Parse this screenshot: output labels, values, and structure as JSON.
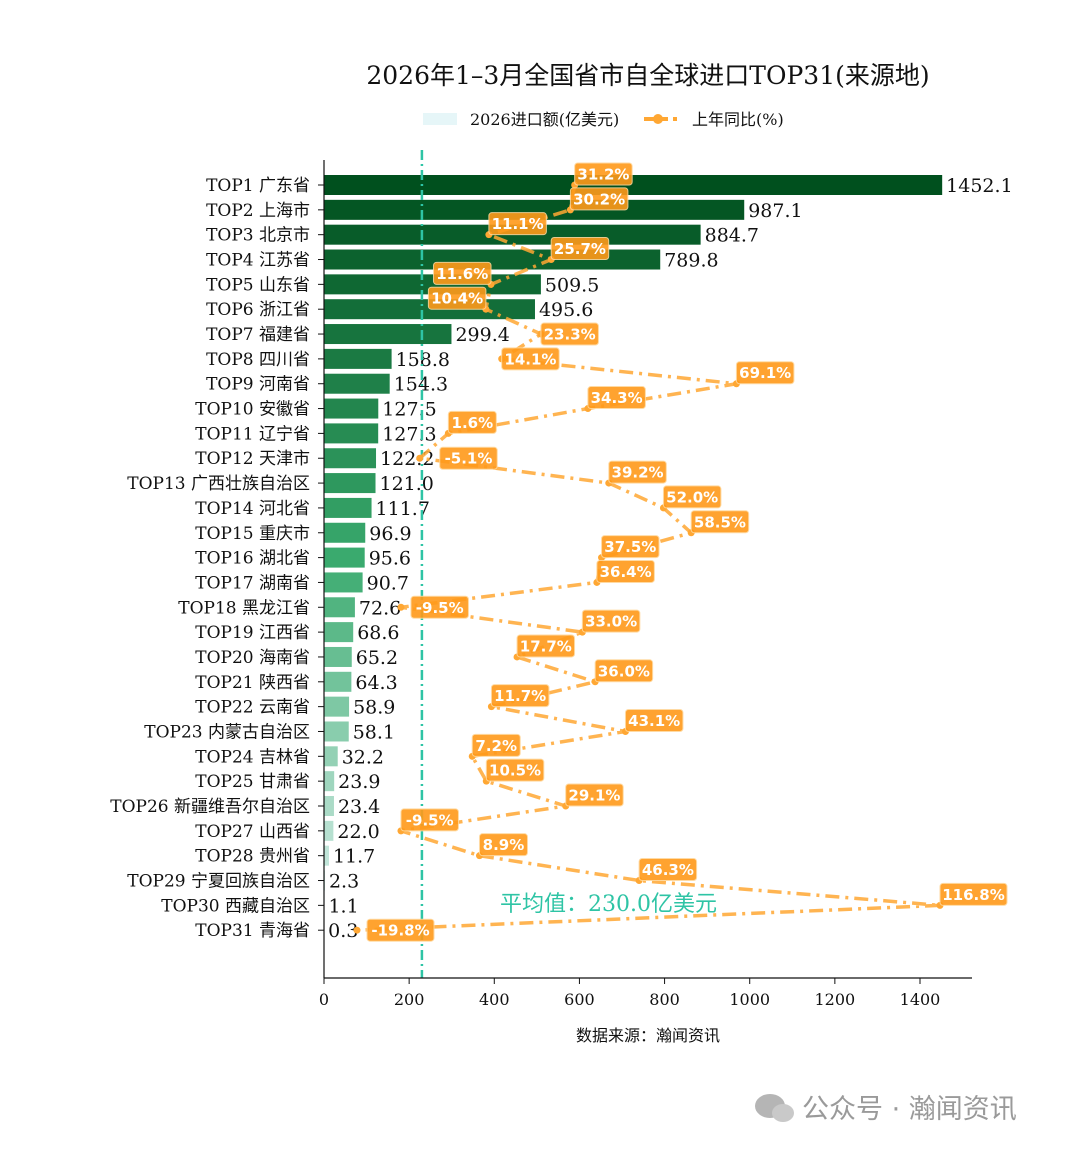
{
  "chart_data": {
    "type": "bar",
    "orientation": "horizontal",
    "title": "2026年1–3月全国省市自全球进口TOP31(来源地)",
    "xlabel": "数据来源：瀚闻资讯",
    "xlim": [
      0,
      1520
    ],
    "xticks": [
      "0",
      "200",
      "400",
      "600",
      "800",
      "1000",
      "1200",
      "1400"
    ],
    "grid": false,
    "legend": {
      "placement": "top-center",
      "entries": [
        "2026进口额(亿美元)",
        "上年同比(%)"
      ]
    },
    "categories": [
      "TOP1 广东省",
      "TOP2 上海市",
      "TOP3 北京市",
      "TOP4 江苏省",
      "TOP5 山东省",
      "TOP6 浙江省",
      "TOP7 福建省",
      "TOP8 四川省",
      "TOP9 河南省",
      "TOP10 安徽省",
      "TOP11 辽宁省",
      "TOP12 天津市",
      "TOP13 广西壮族自治区",
      "TOP14 河北省",
      "TOP15 重庆市",
      "TOP16 湖北省",
      "TOP17 湖南省",
      "TOP18 黑龙江省",
      "TOP19 江西省",
      "TOP20 海南省",
      "TOP21 陕西省",
      "TOP22 云南省",
      "TOP23 内蒙古自治区",
      "TOP24 吉林省",
      "TOP25 甘肃省",
      "TOP26 新疆维吾尔自治区",
      "TOP27 山西省",
      "TOP28 贵州省",
      "TOP29 宁夏回族自治区",
      "TOP30 西藏自治区",
      "TOP31 青海省"
    ],
    "series": [
      {
        "name": "2026进口额(亿美元)",
        "type": "bar",
        "values": [
          1452.1,
          987.1,
          884.7,
          789.8,
          509.5,
          495.6,
          299.4,
          158.8,
          154.3,
          127.5,
          127.3,
          122.2,
          121.0,
          111.7,
          96.9,
          95.6,
          90.7,
          72.6,
          68.6,
          65.2,
          64.3,
          58.9,
          58.1,
          32.2,
          23.9,
          23.4,
          22.0,
          11.7,
          2.3,
          1.1,
          0.3
        ],
        "labels": [
          "1452.1",
          "987.1",
          "884.7",
          "789.8",
          "509.5",
          "495.6",
          "299.4",
          "158.8",
          "154.3",
          "127.5",
          "127.3",
          "122.2",
          "121.0",
          "111.7",
          "96.9",
          "95.6",
          "90.7",
          "72.6",
          "68.6",
          "65.2",
          "64.3",
          "58.9",
          "58.1",
          "32.2",
          "23.9",
          "23.4",
          "22.0",
          "11.7",
          "2.3",
          "1.1",
          "0.3"
        ]
      },
      {
        "name": "上年同比(%)",
        "type": "line",
        "values": [
          31.2,
          30.2,
          11.1,
          25.7,
          11.6,
          10.4,
          23.3,
          14.1,
          69.1,
          34.3,
          1.6,
          -5.1,
          39.2,
          52.0,
          58.5,
          37.5,
          36.4,
          -9.5,
          33.0,
          17.7,
          36.0,
          11.7,
          43.1,
          7.2,
          10.5,
          29.1,
          -9.5,
          8.9,
          46.3,
          116.8,
          -19.8
        ],
        "labels": [
          "31.2%",
          "30.2%",
          "11.1%",
          "25.7%",
          "11.6%",
          "10.4%",
          "23.3%",
          "14.1%",
          "69.1%",
          "34.3%",
          "1.6%",
          "-5.1%",
          "39.2%",
          "52.0%",
          "58.5%",
          "37.5%",
          "36.4%",
          "-9.5%",
          "33.0%",
          "17.7%",
          "36.0%",
          "11.7%",
          "43.1%",
          "7.2%",
          "10.5%",
          "29.1%",
          "-9.5%",
          "8.9%",
          "46.3%",
          "116.8%",
          "-19.8%"
        ]
      }
    ],
    "average": {
      "value": 230.0,
      "label": "平均值：230.0亿美元"
    },
    "colors": {
      "bar_dark": "#00501e",
      "bar_light": "#e3f4f4",
      "line": "#ffa733",
      "label_bg": "#ff9a1a",
      "average": "#2ec4a5"
    }
  },
  "watermark": "公众号 · 瀚闻资讯"
}
